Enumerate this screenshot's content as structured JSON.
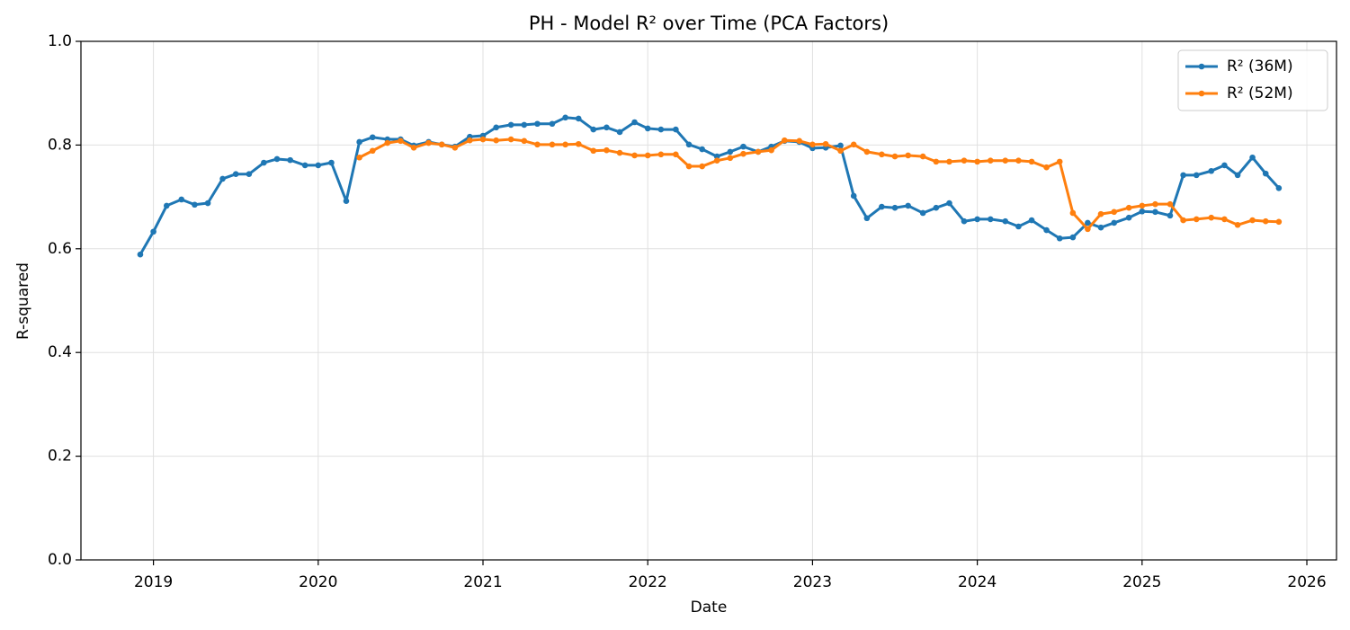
{
  "chart_data": {
    "type": "line",
    "title": "PH - Model R² over Time (PCA Factors)",
    "x_label": "Date",
    "y_label": "R-squared",
    "x": [
      2018.92,
      2019.0,
      2019.08,
      2019.17,
      2019.25,
      2019.33,
      2019.42,
      2019.5,
      2019.58,
      2019.67,
      2019.75,
      2019.83,
      2019.92,
      2020.0,
      2020.08,
      2020.17,
      2020.25,
      2020.33,
      2020.42,
      2020.5,
      2020.58,
      2020.67,
      2020.75,
      2020.83,
      2020.92,
      2021.0,
      2021.08,
      2021.17,
      2021.25,
      2021.33,
      2021.42,
      2021.5,
      2021.58,
      2021.67,
      2021.75,
      2021.83,
      2021.92,
      2022.0,
      2022.08,
      2022.17,
      2022.25,
      2022.33,
      2022.42,
      2022.5,
      2022.58,
      2022.67,
      2022.75,
      2022.83,
      2022.92,
      2023.0,
      2023.08,
      2023.17,
      2023.25,
      2023.33,
      2023.42,
      2023.5,
      2023.58,
      2023.67,
      2023.75,
      2023.83,
      2023.92,
      2024.0,
      2024.08,
      2024.17,
      2024.25,
      2024.33,
      2024.42,
      2024.5,
      2024.58,
      2024.67,
      2024.75,
      2024.83,
      2024.92,
      2025.0,
      2025.08,
      2025.17,
      2025.25,
      2025.33,
      2025.42,
      2025.5,
      2025.58,
      2025.67,
      2025.75,
      2025.83
    ],
    "series": [
      {
        "name": "R² (36M)",
        "color": "#1f77b4",
        "values": [
          0.589,
          0.633,
          0.683,
          0.695,
          0.685,
          0.688,
          0.735,
          0.744,
          0.744,
          0.766,
          0.773,
          0.771,
          0.761,
          0.761,
          0.766,
          0.692,
          0.806,
          0.815,
          0.811,
          0.811,
          0.799,
          0.806,
          0.801,
          0.797,
          0.816,
          0.818,
          0.834,
          0.839,
          0.839,
          0.841,
          0.841,
          0.853,
          0.851,
          0.83,
          0.834,
          0.825,
          0.844,
          0.832,
          0.83,
          0.83,
          0.801,
          0.792,
          0.778,
          0.787,
          0.797,
          0.787,
          0.797,
          0.808,
          0.806,
          0.794,
          0.795,
          0.799,
          0.702,
          0.659,
          0.681,
          0.679,
          0.683,
          0.669,
          0.679,
          0.688,
          0.653,
          0.657,
          0.657,
          0.653,
          0.643,
          0.655,
          0.636,
          0.62,
          0.622,
          0.65,
          0.641,
          0.65,
          0.66,
          0.672,
          0.671,
          0.664,
          0.742,
          0.742,
          0.75,
          0.761,
          0.742,
          0.776,
          0.745,
          0.717
        ]
      },
      {
        "name": "R² (52M)",
        "color": "#ff7f0e",
        "values": [
          null,
          null,
          null,
          null,
          null,
          null,
          null,
          null,
          null,
          null,
          null,
          null,
          null,
          null,
          null,
          null,
          0.776,
          0.789,
          0.804,
          0.808,
          0.795,
          0.804,
          0.801,
          0.795,
          0.809,
          0.811,
          0.809,
          0.811,
          0.808,
          0.801,
          0.801,
          0.801,
          0.802,
          0.789,
          0.79,
          0.785,
          0.78,
          0.78,
          0.782,
          0.782,
          0.759,
          0.759,
          0.77,
          0.775,
          0.783,
          0.787,
          0.79,
          0.809,
          0.808,
          0.801,
          0.802,
          0.789,
          0.801,
          0.787,
          0.782,
          0.778,
          0.78,
          0.778,
          0.768,
          0.768,
          0.77,
          0.768,
          0.77,
          0.77,
          0.77,
          0.768,
          0.757,
          0.768,
          0.669,
          0.638,
          0.667,
          0.671,
          0.679,
          0.683,
          0.686,
          0.686,
          0.655,
          0.657,
          0.66,
          0.657,
          0.646,
          0.655,
          0.653,
          0.652
        ]
      }
    ],
    "xlim": [
      2018.56,
      2026.18
    ],
    "xticks": [
      2019,
      2020,
      2021,
      2022,
      2023,
      2024,
      2025,
      2026
    ],
    "ylim": [
      0,
      1
    ],
    "yticks": [
      {
        "value": 0,
        "label": "0.0"
      },
      0.2,
      0.4,
      0.6,
      0.8,
      {
        "value": 1,
        "label": "1.0"
      }
    ],
    "grid": true,
    "legend": "upper right"
  }
}
